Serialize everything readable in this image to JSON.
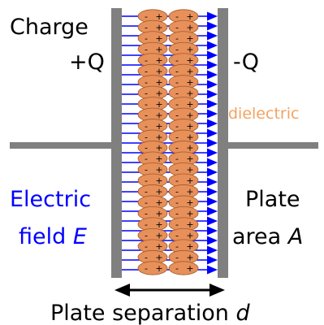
{
  "labels": {
    "charge": "Charge",
    "plus_q": "+Q",
    "minus_q": "-Q",
    "dielectric": "dielectric",
    "electric_field_line1": "Electric",
    "electric_field_line2_text": "field",
    "electric_field_symbol": "E",
    "plate_line1": "Plate",
    "plate_area_text": "area",
    "plate_area_symbol": "A",
    "separation_text": "Plate separation",
    "separation_symbol": "d"
  },
  "dipole": {
    "negative_sign": "-",
    "positive_sign": "+"
  },
  "colors": {
    "plate": "#808080",
    "wire": "#808080",
    "field": "#0000ff",
    "dipole_fill": "#e8905a",
    "dipole_stroke": "#a05a2c",
    "dielectric_label": "#f4a261",
    "text": "#000000",
    "field_label": "#0000ff"
  },
  "counts": {
    "field_lines": 27,
    "dipole_rows": 24,
    "dipoles_per_row": 2
  }
}
